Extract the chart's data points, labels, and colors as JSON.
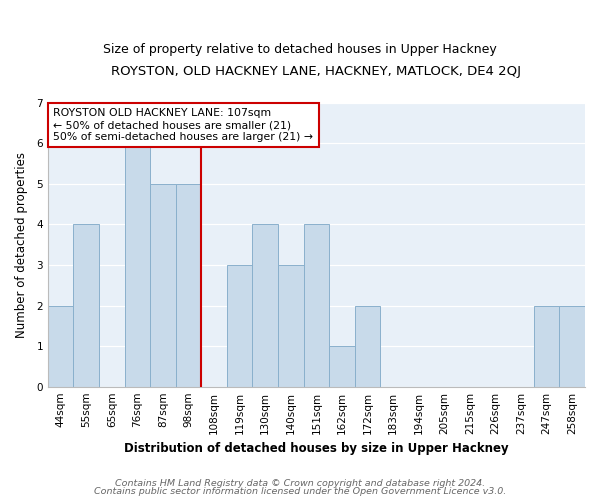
{
  "title": "ROYSTON, OLD HACKNEY LANE, HACKNEY, MATLOCK, DE4 2QJ",
  "subtitle": "Size of property relative to detached houses in Upper Hackney",
  "xlabel": "Distribution of detached houses by size in Upper Hackney",
  "ylabel": "Number of detached properties",
  "bin_labels": [
    "44sqm",
    "55sqm",
    "65sqm",
    "76sqm",
    "87sqm",
    "98sqm",
    "108sqm",
    "119sqm",
    "130sqm",
    "140sqm",
    "151sqm",
    "162sqm",
    "172sqm",
    "183sqm",
    "194sqm",
    "205sqm",
    "215sqm",
    "226sqm",
    "237sqm",
    "247sqm",
    "258sqm"
  ],
  "bar_values": [
    2,
    4,
    0,
    6,
    5,
    5,
    0,
    3,
    4,
    3,
    4,
    1,
    2,
    0,
    0,
    0,
    0,
    0,
    0,
    2,
    2
  ],
  "bar_color": "#c8daea",
  "bar_edgecolor": "#8ab0cc",
  "vline_color": "#cc0000",
  "vline_x_index": 5.5,
  "annotation_text": "ROYSTON OLD HACKNEY LANE: 107sqm\n← 50% of detached houses are smaller (21)\n50% of semi-detached houses are larger (21) →",
  "annotation_box_edgecolor": "#cc0000",
  "ylim": [
    0,
    7
  ],
  "yticks": [
    0,
    1,
    2,
    3,
    4,
    5,
    6,
    7
  ],
  "footer_line1": "Contains HM Land Registry data © Crown copyright and database right 2024.",
  "footer_line2": "Contains public sector information licensed under the Open Government Licence v3.0.",
  "fig_background": "#ffffff",
  "plot_background": "#e8f0f8",
  "title_fontsize": 9.5,
  "subtitle_fontsize": 9,
  "axis_label_fontsize": 8.5,
  "tick_fontsize": 7.5,
  "annotation_fontsize": 7.8,
  "footer_fontsize": 6.8
}
